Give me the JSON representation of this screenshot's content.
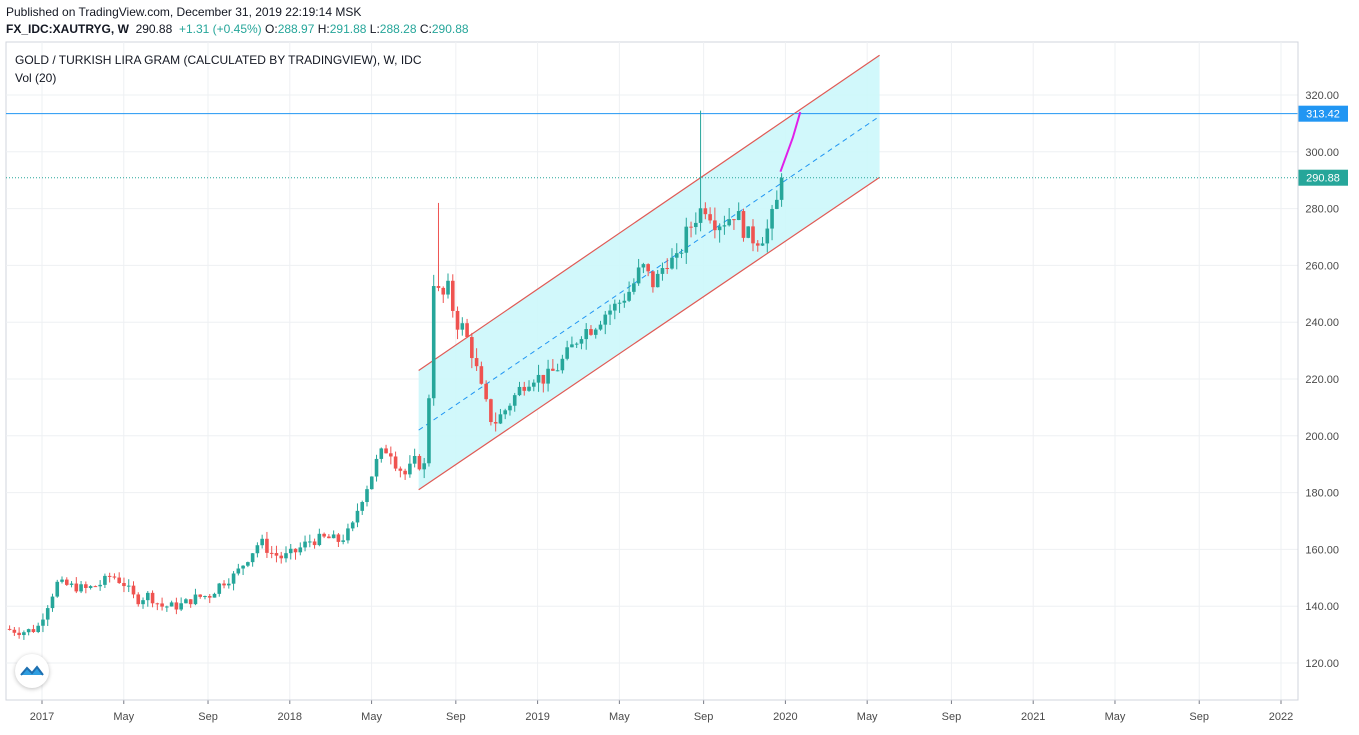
{
  "header": {
    "published": "Published on TradingView.com, December 31, 2019 22:19:14 MSK",
    "symbol": "FX_IDC:XAUTRYG, W",
    "last": "290.88",
    "change": "+1.31 (+0.45%)",
    "o_label": "O:",
    "o_value": "288.97",
    "h_label": "H:",
    "h_value": "291.88",
    "l_label": "L:",
    "l_value": "288.28",
    "c_label": "C:",
    "c_value": "290.88"
  },
  "legend": {
    "title": "GOLD / TURKISH LIRA GRAM (CALCULATED BY TRADINGVIEW), W, IDC",
    "indicator": "Vol (20)"
  },
  "colors": {
    "up": "#26a69a",
    "down": "#ef5350",
    "channel_fill": "#ccf7fb",
    "channel_line": "#e05a55",
    "midline": "#2196f3",
    "projection": "#e020e8",
    "hline": "#2196f3",
    "last_price": "#26a69a"
  },
  "chart_data": {
    "type": "candlestick",
    "interval": "W",
    "ylim": [
      110,
      327
    ],
    "y_ticks": [
      120,
      140,
      160,
      180,
      200,
      220,
      240,
      260,
      280,
      300,
      320
    ],
    "x_ticks": [
      {
        "label": "2017",
        "t": 2017.0
      },
      {
        "label": "May",
        "t": 2017.33
      },
      {
        "label": "Sep",
        "t": 2017.67
      },
      {
        "label": "2018",
        "t": 2018.0
      },
      {
        "label": "May",
        "t": 2018.33
      },
      {
        "label": "Sep",
        "t": 2018.67
      },
      {
        "label": "2019",
        "t": 2019.0
      },
      {
        "label": "May",
        "t": 2019.33
      },
      {
        "label": "Sep",
        "t": 2019.67
      },
      {
        "label": "2020",
        "t": 2020.0
      },
      {
        "label": "May",
        "t": 2020.33
      },
      {
        "label": "Sep",
        "t": 2020.67
      },
      {
        "label": "2021",
        "t": 2021.0
      },
      {
        "label": "May",
        "t": 2021.33
      },
      {
        "label": "Sep",
        "t": 2021.67
      },
      {
        "label": "2022",
        "t": 2022.0
      }
    ],
    "xlim": [
      2016.85,
      2022.05
    ],
    "path": [
      [
        2016.85,
        132
      ],
      [
        2016.92,
        131
      ],
      [
        2016.98,
        132
      ],
      [
        2017.02,
        140
      ],
      [
        2017.06,
        148
      ],
      [
        2017.12,
        147
      ],
      [
        2017.18,
        146
      ],
      [
        2017.24,
        148
      ],
      [
        2017.28,
        151
      ],
      [
        2017.33,
        148
      ],
      [
        2017.38,
        142
      ],
      [
        2017.43,
        144
      ],
      [
        2017.48,
        140
      ],
      [
        2017.55,
        140
      ],
      [
        2017.62,
        143
      ],
      [
        2017.68,
        144
      ],
      [
        2017.72,
        148
      ],
      [
        2017.78,
        151
      ],
      [
        2017.83,
        157
      ],
      [
        2017.88,
        163
      ],
      [
        2017.92,
        159
      ],
      [
        2017.97,
        157
      ],
      [
        2018.02,
        159
      ],
      [
        2018.08,
        163
      ],
      [
        2018.15,
        164
      ],
      [
        2018.2,
        163
      ],
      [
        2018.25,
        167
      ],
      [
        2018.28,
        176
      ],
      [
        2018.32,
        184
      ],
      [
        2018.36,
        193
      ],
      [
        2018.4,
        196
      ],
      [
        2018.43,
        190
      ],
      [
        2018.47,
        186
      ],
      [
        2018.5,
        191
      ],
      [
        2018.55,
        189
      ],
      [
        2018.58,
        255
      ],
      [
        2018.61,
        248
      ],
      [
        2018.64,
        252
      ],
      [
        2018.67,
        240
      ],
      [
        2018.7,
        238
      ],
      [
        2018.74,
        228
      ],
      [
        2018.78,
        214
      ],
      [
        2018.82,
        204
      ],
      [
        2018.86,
        208
      ],
      [
        2018.9,
        213
      ],
      [
        2018.94,
        218
      ],
      [
        2018.98,
        221
      ],
      [
        2019.03,
        220
      ],
      [
        2019.08,
        224
      ],
      [
        2019.13,
        230
      ],
      [
        2019.18,
        237
      ],
      [
        2019.22,
        238
      ],
      [
        2019.27,
        243
      ],
      [
        2019.32,
        246
      ],
      [
        2019.38,
        252
      ],
      [
        2019.42,
        260
      ],
      [
        2019.47,
        253
      ],
      [
        2019.52,
        262
      ],
      [
        2019.56,
        261
      ],
      [
        2019.6,
        271
      ],
      [
        2019.65,
        279
      ],
      [
        2019.68,
        281
      ],
      [
        2019.72,
        275
      ],
      [
        2019.76,
        276
      ],
      [
        2019.8,
        279
      ],
      [
        2019.84,
        271
      ],
      [
        2019.88,
        269
      ],
      [
        2019.92,
        271
      ],
      [
        2019.96,
        280
      ],
      [
        2019.99,
        290.88
      ]
    ],
    "spike": {
      "t": 2019.66,
      "high": 314.5
    },
    "spike_2018": {
      "t": 2018.6,
      "high": 282
    },
    "channel": {
      "upper": [
        [
          2018.52,
          223
        ],
        [
          2020.38,
          334
        ]
      ],
      "lower": [
        [
          2018.52,
          181
        ],
        [
          2020.38,
          291
        ]
      ],
      "middle": [
        [
          2018.52,
          202
        ],
        [
          2020.38,
          312.5
        ]
      ]
    },
    "projection": [
      [
        2019.98,
        293
      ],
      [
        2020.03,
        305
      ],
      [
        2020.06,
        314
      ]
    ],
    "hline": {
      "value": 313.42,
      "label": "313.42"
    },
    "last_price": {
      "value": 290.88,
      "label": "290.88"
    }
  }
}
